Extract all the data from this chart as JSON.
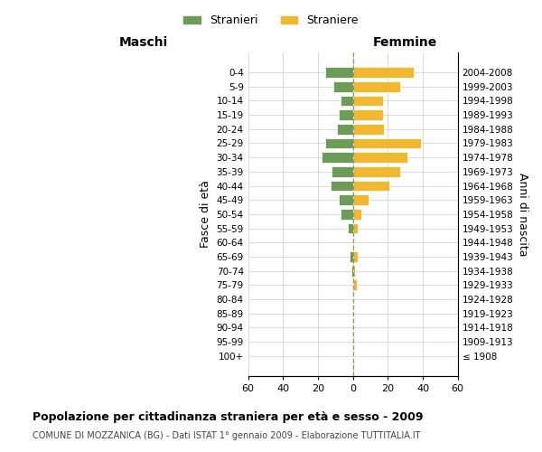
{
  "age_groups": [
    "100+",
    "95-99",
    "90-94",
    "85-89",
    "80-84",
    "75-79",
    "70-74",
    "65-69",
    "60-64",
    "55-59",
    "50-54",
    "45-49",
    "40-44",
    "35-39",
    "30-34",
    "25-29",
    "20-24",
    "15-19",
    "10-14",
    "5-9",
    "0-4"
  ],
  "birth_years": [
    "≤ 1908",
    "1909-1913",
    "1914-1918",
    "1919-1923",
    "1924-1928",
    "1929-1933",
    "1934-1938",
    "1939-1943",
    "1944-1948",
    "1949-1953",
    "1954-1958",
    "1959-1963",
    "1964-1968",
    "1969-1973",
    "1974-1978",
    "1979-1983",
    "1984-1988",
    "1989-1993",
    "1994-1998",
    "1999-2003",
    "2004-2008"
  ],
  "maschi": [
    0,
    0,
    0,
    0,
    0,
    0,
    1,
    2,
    0,
    3,
    7,
    8,
    13,
    12,
    18,
    16,
    9,
    8,
    7,
    11,
    16
  ],
  "femmine": [
    0,
    0,
    0,
    0,
    0,
    2,
    1,
    3,
    0,
    3,
    5,
    9,
    21,
    27,
    31,
    39,
    18,
    17,
    17,
    27,
    35
  ],
  "color_maschi": "#6d9b58",
  "color_femmine": "#f0b830",
  "title": "Popolazione per cittadinanza straniera per età e sesso - 2009",
  "subtitle": "COMUNE DI MOZZANICA (BG) - Dati ISTAT 1° gennaio 2009 - Elaborazione TUTTITALIA.IT",
  "ylabel_left": "Fasce di età",
  "ylabel_right": "Anni di nascita",
  "xlabel_maschi": "Maschi",
  "xlabel_femmine": "Femmine",
  "legend_maschi": "Stranieri",
  "legend_femmine": "Straniere",
  "xlim": 60,
  "background_color": "#ffffff",
  "grid_color": "#cccccc"
}
